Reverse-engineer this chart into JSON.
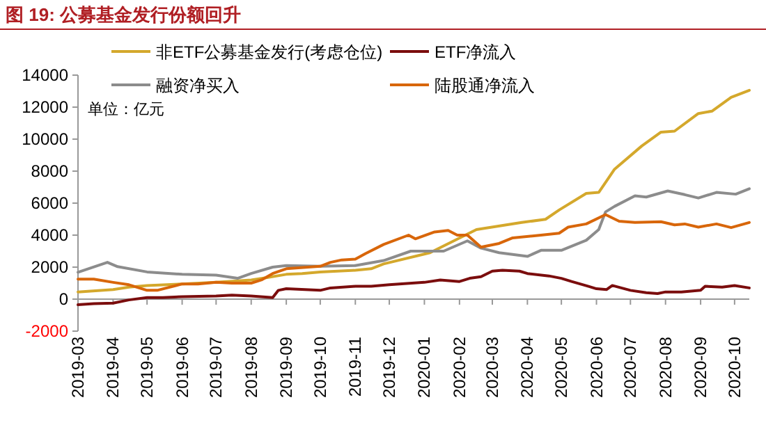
{
  "chart_data": {
    "type": "line",
    "title": "图 19: 公募基金发行份额回升",
    "annotations": [
      "单位：亿元"
    ],
    "xlim": [
      "2019-03-01",
      "2020-10-14"
    ],
    "xticks": [
      {
        "value": "2019-03",
        "label": "2019-03"
      },
      {
        "value": "2019-04",
        "label": "2019-04"
      },
      {
        "value": "2019-05",
        "label": "2019-05"
      },
      {
        "value": "2019-06",
        "label": "2019-06"
      },
      {
        "value": "2019-07",
        "label": "2019-07"
      },
      {
        "value": "2019-08",
        "label": "2019-08"
      },
      {
        "value": "2019-09",
        "label": "2019-09"
      },
      {
        "value": "2019-10",
        "label": "2019-10"
      },
      {
        "value": "2019-11",
        "label": "2019-11"
      },
      {
        "value": "2019-12",
        "label": "2019-12"
      },
      {
        "value": "2020-01",
        "label": "2020-01"
      },
      {
        "value": "2020-02",
        "label": "2020-02"
      },
      {
        "value": "2020-03",
        "label": "2020-03"
      },
      {
        "value": "2020-04",
        "label": "2020-04"
      },
      {
        "value": "2020-05",
        "label": "2020-05"
      },
      {
        "value": "2020-06",
        "label": "2020-06"
      },
      {
        "value": "2020-07",
        "label": "2020-07"
      },
      {
        "value": "2020-08",
        "label": "2020-08"
      },
      {
        "value": "2020-09",
        "label": "2020-09"
      },
      {
        "value": "2020-10",
        "label": "2020-10"
      }
    ],
    "ylim": [
      -2000,
      14000
    ],
    "yticks": [
      -2000,
      0,
      2000,
      4000,
      6000,
      8000,
      10000,
      12000,
      14000
    ],
    "legend": "top",
    "grid": false,
    "marker": "none",
    "line_style": "solid",
    "series": [
      {
        "name": "非ETF公募基金发行(考虑仓位)",
        "color": "#d4a82c",
        "x": [
          "2019-03-01",
          "2019-04-01",
          "2019-04-15",
          "2019-05-01",
          "2019-06-01",
          "2019-07-01",
          "2019-08-01",
          "2019-08-15",
          "2019-09-01",
          "2019-09-15",
          "2019-10-01",
          "2019-11-01",
          "2019-11-15",
          "2019-11-26",
          "2020-01-06",
          "2020-02-16",
          "2020-03-27",
          "2020-04-17",
          "2020-04-29",
          "2020-05-23",
          "2020-06-03",
          "2020-06-17",
          "2020-07-11",
          "2020-07-28",
          "2020-08-09",
          "2020-08-30",
          "2020-09-11",
          "2020-09-28",
          "2020-10-14"
        ],
        "values": [
          450,
          600,
          750,
          850,
          950,
          1050,
          1200,
          1350,
          1550,
          1600,
          1700,
          1800,
          1900,
          2200,
          2900,
          4350,
          4790,
          4990,
          5570,
          6610,
          6670,
          8120,
          9570,
          10440,
          10500,
          11600,
          11750,
          12610,
          13050
        ]
      },
      {
        "name": "ETF净流入",
        "color": "#7b0d0d",
        "x": [
          "2019-03-01",
          "2019-03-15",
          "2019-04-01",
          "2019-04-15",
          "2019-05-01",
          "2019-05-15",
          "2019-06-01",
          "2019-07-01",
          "2019-07-15",
          "2019-08-01",
          "2019-08-20",
          "2019-08-25",
          "2019-09-01",
          "2019-10-01",
          "2019-10-10",
          "2019-11-01",
          "2019-11-15",
          "2019-12-01",
          "2020-01-01",
          "2020-01-15",
          "2020-02-01",
          "2020-02-10",
          "2020-02-20",
          "2020-03-01",
          "2020-03-10",
          "2020-03-25",
          "2020-04-01",
          "2020-04-20",
          "2020-05-01",
          "2020-05-10",
          "2020-05-25",
          "2020-06-01",
          "2020-06-10",
          "2020-06-15",
          "2020-07-01",
          "2020-07-15",
          "2020-07-25",
          "2020-08-01",
          "2020-08-15",
          "2020-09-01",
          "2020-09-05",
          "2020-09-20",
          "2020-10-01",
          "2020-10-14"
        ],
        "values": [
          -350,
          -280,
          -250,
          -50,
          100,
          100,
          150,
          200,
          250,
          200,
          100,
          550,
          650,
          550,
          700,
          800,
          800,
          900,
          1050,
          1200,
          1100,
          1300,
          1400,
          1750,
          1800,
          1750,
          1600,
          1450,
          1300,
          1100,
          800,
          650,
          600,
          850,
          550,
          400,
          350,
          450,
          450,
          550,
          800,
          750,
          850,
          700
        ]
      },
      {
        "name": "融资净买入",
        "color": "#8c8c8c",
        "x": [
          "2019-03-01",
          "2019-03-27",
          "2019-04-05",
          "2019-05-01",
          "2019-06-01",
          "2019-07-01",
          "2019-07-20",
          "2019-08-01",
          "2019-08-20",
          "2019-09-01",
          "2019-10-01",
          "2019-11-01",
          "2019-11-26",
          "2019-12-20",
          "2020-01-18",
          "2020-02-08",
          "2020-02-20",
          "2020-03-07",
          "2020-04-01",
          "2020-04-13",
          "2020-05-01",
          "2020-05-23",
          "2020-06-03",
          "2020-06-09",
          "2020-06-17",
          "2020-07-05",
          "2020-07-15",
          "2020-08-03",
          "2020-08-18",
          "2020-08-30",
          "2020-09-15",
          "2020-10-02",
          "2020-10-14"
        ],
        "values": [
          1680,
          2300,
          2030,
          1700,
          1550,
          1500,
          1300,
          1600,
          2000,
          2100,
          2050,
          2100,
          2410,
          3000,
          3000,
          3640,
          3190,
          2900,
          2670,
          3050,
          3050,
          3680,
          4350,
          5450,
          5800,
          6460,
          6380,
          6760,
          6530,
          6320,
          6670,
          6560,
          6900
        ]
      },
      {
        "name": "陆股通净流入",
        "color": "#d8660a",
        "x": [
          "2019-03-01",
          "2019-03-15",
          "2019-04-01",
          "2019-04-15",
          "2019-05-01",
          "2019-05-10",
          "2019-06-01",
          "2019-06-15",
          "2019-07-01",
          "2019-07-15",
          "2019-08-01",
          "2019-08-10",
          "2019-08-20",
          "2019-09-01",
          "2019-10-01",
          "2019-10-10",
          "2019-10-20",
          "2019-11-01",
          "2019-11-10",
          "2019-11-26",
          "2019-12-18",
          "2019-12-24",
          "2020-01-10",
          "2020-01-22",
          "2020-01-30",
          "2020-02-08",
          "2020-02-20",
          "2020-03-07",
          "2020-03-19",
          "2020-04-13",
          "2020-04-29",
          "2020-05-07",
          "2020-05-23",
          "2020-06-09",
          "2020-06-21",
          "2020-07-05",
          "2020-07-28",
          "2020-08-09",
          "2020-08-18",
          "2020-08-30",
          "2020-09-15",
          "2020-09-28",
          "2020-10-14"
        ],
        "values": [
          1250,
          1250,
          1050,
          900,
          550,
          550,
          950,
          950,
          1050,
          1000,
          1000,
          1200,
          1600,
          1900,
          2050,
          2300,
          2450,
          2500,
          2850,
          3420,
          4000,
          3770,
          4200,
          4290,
          4000,
          4000,
          3250,
          3480,
          3830,
          4000,
          4120,
          4500,
          4700,
          5280,
          4870,
          4790,
          4840,
          4640,
          4700,
          4500,
          4700,
          4470,
          4790
        ]
      }
    ]
  }
}
